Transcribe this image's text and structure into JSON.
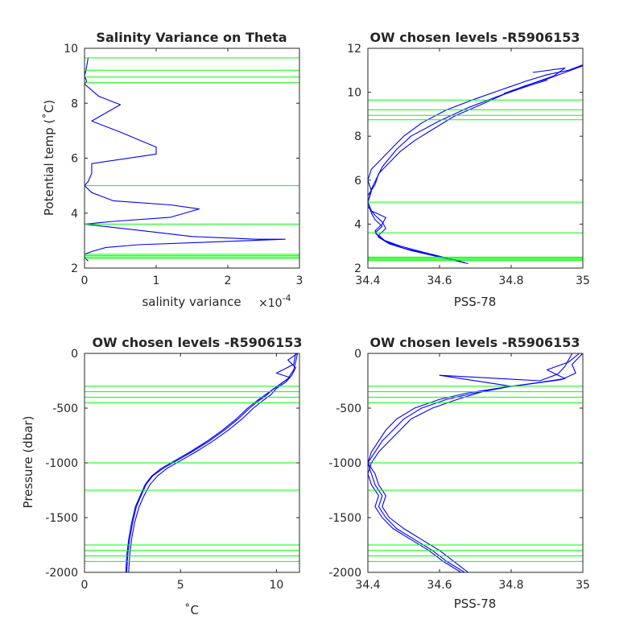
{
  "chart_data": [
    {
      "type": "line",
      "title": "Salinity Variance on Theta",
      "xlabel": "salinity variance",
      "xscale_label": "×10",
      "xscale_exp": "-4",
      "ylabel": "Potential temp (˚C)",
      "xlim": [
        0,
        3
      ],
      "ylim": [
        2,
        10
      ],
      "xticks": [
        "0",
        "1",
        "2",
        "3"
      ],
      "yticks": [
        "2",
        "4",
        "6",
        "8",
        "10"
      ],
      "xtick_values": [
        0,
        1,
        2,
        3
      ],
      "ytick_values": [
        2,
        4,
        6,
        8,
        10
      ],
      "grid": false,
      "series": [
        {
          "color": "#0000ff",
          "x": [
            0.05,
            0.02,
            0.0,
            0.03,
            0.0,
            0.2,
            0.5,
            0.1,
            0.5,
            1.0,
            1.0,
            0.1,
            0.1,
            0.05,
            0.0,
            0.1,
            0.4,
            1.2,
            1.6,
            1.2,
            0.4,
            0.0,
            1.0,
            1.5,
            2.4,
            2.8,
            0.75,
            0.3,
            0.1,
            0.0,
            0.0,
            0.05
          ],
          "y": [
            9.65,
            9.2,
            9.0,
            8.8,
            8.7,
            8.25,
            7.95,
            7.35,
            6.95,
            6.4,
            6.15,
            5.8,
            5.45,
            5.15,
            5.0,
            4.75,
            4.45,
            4.3,
            4.15,
            3.85,
            3.7,
            3.6,
            3.3,
            3.15,
            3.05,
            3.05,
            2.85,
            2.75,
            2.6,
            2.5,
            2.4,
            2.25
          ]
        },
        {
          "color": "#00ff00",
          "levels": [
            9.65,
            9.2,
            8.95,
            8.75,
            5.0,
            3.6,
            2.5,
            2.45,
            2.4,
            2.35
          ]
        }
      ]
    },
    {
      "type": "line",
      "title": "OW chosen levels -R5906153",
      "xlabel": "PSS-78",
      "ylabel": "",
      "xlim": [
        34.4,
        35
      ],
      "ylim": [
        2,
        12
      ],
      "xticks": [
        "34.4",
        "34.6",
        "34.8",
        "35"
      ],
      "yticks": [
        "2",
        "4",
        "6",
        "8",
        "10",
        "12"
      ],
      "xtick_values": [
        34.4,
        34.6,
        34.8,
        35
      ],
      "ytick_values": [
        2,
        4,
        6,
        8,
        10,
        12
      ],
      "grid": false,
      "series": [
        {
          "color": "#0000ff",
          "x": [
            34.68,
            34.6,
            34.52,
            34.46,
            34.43,
            34.42,
            34.44,
            34.45,
            34.41,
            34.4,
            34.41,
            34.4,
            34.41,
            34.44,
            34.47,
            34.5,
            34.55,
            34.62,
            34.7,
            34.77,
            34.84,
            34.9,
            34.96,
            35.0
          ],
          "y": [
            2.2,
            2.5,
            2.8,
            3.1,
            3.4,
            3.7,
            4.0,
            4.3,
            4.6,
            5.0,
            5.5,
            6.0,
            6.5,
            7.0,
            7.5,
            8.0,
            8.6,
            9.2,
            9.7,
            10.1,
            10.5,
            10.8,
            11.0,
            11.25
          ]
        },
        {
          "color": "#0000ff",
          "x": [
            34.67,
            34.58,
            34.5,
            34.45,
            34.43,
            34.45,
            34.44,
            34.42,
            34.4,
            34.4,
            34.42,
            34.43,
            34.46,
            34.49,
            34.53,
            34.58,
            34.64,
            34.71,
            34.78,
            34.84,
            34.9,
            34.95,
            35.0
          ],
          "y": [
            2.25,
            2.6,
            2.9,
            3.2,
            3.5,
            3.8,
            4.1,
            4.4,
            4.8,
            5.3,
            5.8,
            6.3,
            6.8,
            7.3,
            7.8,
            8.3,
            8.9,
            9.4,
            9.9,
            10.3,
            10.6,
            10.9,
            11.2
          ]
        },
        {
          "color": "#0000ff",
          "x": [
            34.66,
            34.56,
            34.49,
            34.44,
            34.42,
            34.44,
            34.42,
            34.41,
            34.4,
            34.41,
            34.44,
            34.48,
            34.52,
            34.6,
            34.68,
            34.76,
            34.85,
            34.9,
            34.85,
            34.78,
            34.92,
            34.95,
            34.86
          ],
          "y": [
            2.3,
            2.7,
            3.0,
            3.3,
            3.6,
            3.9,
            4.2,
            4.5,
            5.0,
            5.6,
            6.6,
            7.4,
            8.0,
            8.7,
            9.3,
            9.8,
            10.3,
            10.55,
            10.3,
            9.95,
            10.75,
            11.1,
            10.9
          ]
        },
        {
          "color": "#00ff00",
          "levels": [
            9.65,
            9.2,
            8.95,
            8.75,
            5.0,
            3.6,
            2.5,
            2.45,
            2.4,
            2.35
          ]
        }
      ]
    },
    {
      "type": "line",
      "title": "OW chosen levels -R5906153",
      "xlabel": "˚C",
      "ylabel": "Pressure (dbar)",
      "xlim": [
        0,
        11.2
      ],
      "ylim": [
        -2000,
        0
      ],
      "xticks": [
        "0",
        "5",
        "10"
      ],
      "yticks": [
        "0",
        "-500",
        "-1000",
        "-1500",
        "-2000"
      ],
      "xtick_values": [
        0,
        5,
        10
      ],
      "ytick_values": [
        0,
        -500,
        -1000,
        -1500,
        -2000
      ],
      "grid": false,
      "series": [
        {
          "color": "#0000ff",
          "x": [
            2.2,
            2.25,
            2.35,
            2.5,
            2.7,
            2.95,
            3.2,
            3.55,
            4.1,
            4.8,
            5.6,
            6.5,
            7.3,
            8.0,
            8.6,
            9.1,
            9.5,
            9.8,
            10.2,
            10.6,
            10.9,
            11.0,
            11.1
          ],
          "y": [
            -2000,
            -1850,
            -1700,
            -1550,
            -1400,
            -1300,
            -1200,
            -1120,
            -1050,
            -980,
            -900,
            -800,
            -700,
            -600,
            -500,
            -430,
            -380,
            -330,
            -280,
            -230,
            -150,
            -80,
            0
          ]
        },
        {
          "color": "#0000ff",
          "x": [
            2.3,
            2.35,
            2.45,
            2.6,
            2.85,
            3.1,
            3.4,
            3.8,
            4.3,
            5.0,
            5.8,
            6.7,
            7.5,
            8.2,
            8.8,
            9.3,
            9.7,
            10.0,
            10.5,
            10.8,
            11.0,
            10.6,
            11.1
          ],
          "y": [
            -2000,
            -1850,
            -1700,
            -1550,
            -1400,
            -1300,
            -1200,
            -1120,
            -1050,
            -980,
            -900,
            -800,
            -700,
            -600,
            -500,
            -430,
            -380,
            -320,
            -260,
            -200,
            -130,
            -60,
            0
          ]
        },
        {
          "color": "#0000ff",
          "x": [
            2.15,
            2.2,
            2.3,
            2.45,
            2.65,
            2.9,
            3.15,
            3.5,
            4.0,
            4.7,
            5.5,
            6.4,
            7.2,
            7.9,
            8.5,
            9.0,
            9.4,
            9.9,
            10.3,
            10.7,
            10.0,
            10.9,
            11.0
          ],
          "y": [
            -2000,
            -1850,
            -1700,
            -1550,
            -1400,
            -1300,
            -1200,
            -1120,
            -1050,
            -980,
            -900,
            -800,
            -700,
            -600,
            -500,
            -430,
            -380,
            -320,
            -270,
            -220,
            -180,
            -100,
            0
          ]
        },
        {
          "color": "#00ff00",
          "levels": [
            -300,
            -350,
            -400,
            -450,
            -1000,
            -1250,
            -1750,
            -1800,
            -1850,
            -1900
          ]
        }
      ]
    },
    {
      "type": "line",
      "title": "OW chosen levels -R5906153",
      "xlabel": "PSS-78",
      "ylabel": "",
      "xlim": [
        34.4,
        35
      ],
      "ylim": [
        -2000,
        0
      ],
      "xticks": [
        "34.4",
        "34.6",
        "34.8",
        "35"
      ],
      "yticks": [
        "0",
        "-500",
        "-1000",
        "-1500",
        "-2000"
      ],
      "xtick_values": [
        34.4,
        34.6,
        34.8,
        35
      ],
      "ytick_values": [
        0,
        -500,
        -1000,
        -1500,
        -2000
      ],
      "grid": false,
      "series": [
        {
          "color": "#0000ff",
          "x": [
            34.68,
            34.64,
            34.6,
            34.55,
            34.5,
            34.46,
            34.44,
            34.45,
            34.43,
            34.42,
            34.4,
            34.41,
            34.43,
            34.45,
            34.48,
            34.53,
            34.6,
            34.68,
            34.76,
            34.85,
            34.94,
            34.98,
            34.97,
            35.0
          ],
          "y": [
            -2000,
            -1900,
            -1800,
            -1700,
            -1600,
            -1500,
            -1400,
            -1300,
            -1200,
            -1100,
            -1000,
            -900,
            -800,
            -700,
            -600,
            -500,
            -420,
            -360,
            -320,
            -280,
            -240,
            -180,
            -100,
            0
          ]
        },
        {
          "color": "#0000ff",
          "x": [
            34.67,
            34.62,
            34.58,
            34.53,
            34.48,
            34.45,
            34.43,
            34.44,
            34.42,
            34.41,
            34.4,
            34.42,
            34.44,
            34.47,
            34.5,
            34.55,
            34.62,
            34.7,
            34.78,
            34.87,
            34.95,
            34.9,
            34.96,
            34.99
          ],
          "y": [
            -2000,
            -1900,
            -1800,
            -1700,
            -1600,
            -1500,
            -1400,
            -1300,
            -1200,
            -1100,
            -1000,
            -900,
            -800,
            -700,
            -600,
            -500,
            -420,
            -360,
            -310,
            -270,
            -230,
            -150,
            -80,
            0
          ]
        },
        {
          "color": "#0000ff",
          "x": [
            34.66,
            34.61,
            34.57,
            34.52,
            34.47,
            34.44,
            34.42,
            34.43,
            34.41,
            34.4,
            34.41,
            34.43,
            34.46,
            34.49,
            34.52,
            34.58,
            34.65,
            34.72,
            34.8,
            34.6,
            34.88,
            34.93,
            34.95,
            34.97
          ],
          "y": [
            -2000,
            -1900,
            -1800,
            -1700,
            -1600,
            -1500,
            -1400,
            -1300,
            -1200,
            -1100,
            -1000,
            -900,
            -800,
            -700,
            -600,
            -500,
            -420,
            -350,
            -300,
            -200,
            -250,
            -190,
            -120,
            0
          ]
        },
        {
          "color": "#00ff00",
          "levels": [
            -300,
            -350,
            -400,
            -450,
            -1000,
            -1250,
            -1750,
            -1800,
            -1850,
            -1900
          ]
        }
      ]
    }
  ]
}
